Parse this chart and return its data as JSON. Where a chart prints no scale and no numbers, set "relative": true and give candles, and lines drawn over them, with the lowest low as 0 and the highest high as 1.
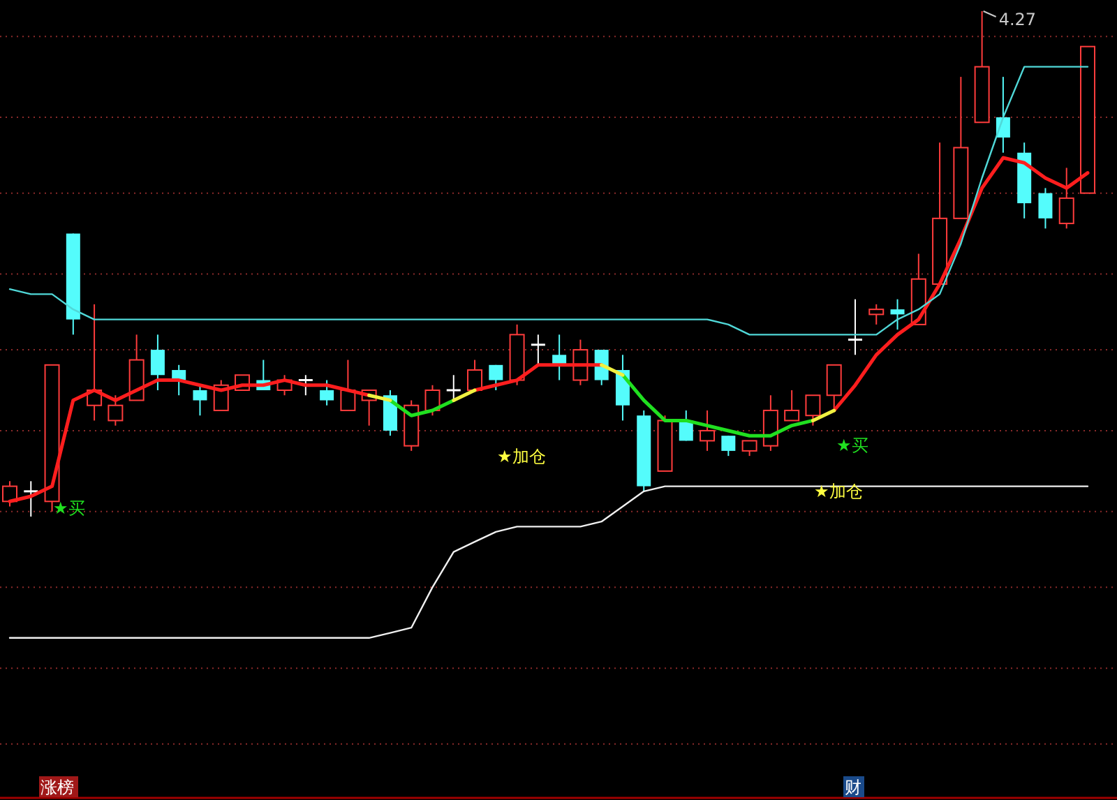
{
  "chart_data": {
    "type": "candlestick",
    "relative": true,
    "ref_lines": [
      {
        "axis": "y",
        "value": 0.95,
        "color": "#8a2a2a",
        "line_style": "dotted"
      },
      {
        "axis": "y",
        "value": 0.79,
        "color": "#8a2a2a",
        "line_style": "dotted"
      },
      {
        "axis": "y",
        "value": 0.64,
        "color": "#8a2a2a",
        "line_style": "dotted"
      },
      {
        "axis": "y",
        "value": 0.48,
        "color": "#8a2a2a",
        "line_style": "dotted"
      },
      {
        "axis": "y",
        "value": 0.33,
        "color": "#8a2a2a",
        "line_style": "dotted"
      },
      {
        "axis": "y",
        "value": 0.17,
        "color": "#8a2a2a",
        "line_style": "dotted"
      },
      {
        "axis": "y",
        "value": 0.01,
        "color": "#8a2a2a",
        "line_style": "dotted"
      },
      {
        "axis": "y",
        "value": -0.14,
        "color": "#8a2a2a",
        "line_style": "dotted"
      },
      {
        "axis": "y",
        "value": -0.3,
        "color": "#8a2a2a",
        "line_style": "dotted"
      },
      {
        "axis": "y",
        "value": -0.45,
        "color": "#8a2a2a",
        "line_style": "dotted"
      }
    ],
    "categories": [
      null,
      null,
      null,
      null,
      null,
      null,
      null,
      null,
      null,
      null,
      null,
      null,
      null,
      null,
      null,
      null,
      null,
      null,
      null,
      null,
      null,
      null,
      null,
      null,
      null,
      null,
      null,
      null,
      null,
      null,
      null,
      null,
      null,
      null,
      null,
      null,
      null,
      null,
      null,
      null,
      null,
      null,
      null,
      null,
      null,
      null,
      null,
      null,
      null,
      null,
      null,
      null
    ],
    "ohlc": [
      [
        0.03,
        0.07,
        0.02,
        0.06
      ],
      [
        0.05,
        0.07,
        0,
        0.05
      ],
      [
        0.03,
        0.3,
        0.01,
        0.3
      ],
      [
        0.56,
        0.56,
        0.36,
        0.39
      ],
      [
        0.22,
        0.42,
        0.19,
        0.25
      ],
      [
        0.19,
        0.24,
        0.18,
        0.22
      ],
      [
        0.23,
        0.36,
        0.23,
        0.31
      ],
      [
        0.33,
        0.36,
        0.25,
        0.28
      ],
      [
        0.29,
        0.3,
        0.24,
        0.27
      ],
      [
        0.25,
        0.26,
        0.2,
        0.23
      ],
      [
        0.21,
        0.27,
        0.21,
        0.26
      ],
      [
        0.25,
        0.28,
        0.25,
        0.28
      ],
      [
        0.27,
        0.31,
        0.25,
        0.25
      ],
      [
        0.25,
        0.28,
        0.24,
        0.27
      ],
      [
        0.27,
        0.28,
        0.24,
        0.27
      ],
      [
        0.25,
        0.27,
        0.22,
        0.23
      ],
      [
        0.21,
        0.31,
        0.21,
        0.25
      ],
      [
        0.23,
        0.25,
        0.18,
        0.25
      ],
      [
        0.24,
        0.25,
        0.16,
        0.17
      ],
      [
        0.14,
        0.23,
        0.13,
        0.22
      ],
      [
        0.21,
        0.26,
        0.2,
        0.25
      ],
      [
        0.25,
        0.28,
        0.23,
        0.25
      ],
      [
        0.25,
        0.31,
        0.25,
        0.29
      ],
      [
        0.3,
        0.3,
        0.25,
        0.27
      ],
      [
        0.27,
        0.38,
        0.26,
        0.36
      ],
      [
        0.34,
        0.36,
        0.3,
        0.34
      ],
      [
        0.32,
        0.36,
        0.27,
        0.3
      ],
      [
        0.27,
        0.35,
        0.26,
        0.33
      ],
      [
        0.33,
        0.33,
        0.26,
        0.27
      ],
      [
        0.29,
        0.32,
        0.19,
        0.22
      ],
      [
        0.2,
        0.21,
        0.05,
        0.06
      ],
      [
        0.09,
        0.2,
        0.09,
        0.19
      ],
      [
        0.19,
        0.21,
        0.15,
        0.15
      ],
      [
        0.15,
        0.21,
        0.13,
        0.17
      ],
      [
        0.16,
        0.16,
        0.12,
        0.13
      ],
      [
        0.13,
        0.15,
        0.12,
        0.15
      ],
      [
        0.14,
        0.24,
        0.13,
        0.21
      ],
      [
        0.19,
        0.25,
        0.19,
        0.21
      ],
      [
        0.2,
        0.24,
        0.18,
        0.24
      ],
      [
        0.24,
        0.3,
        0.21,
        0.3
      ],
      [
        0.35,
        0.43,
        0.32,
        0.35
      ],
      [
        0.4,
        0.42,
        0.38,
        0.41
      ],
      [
        0.41,
        0.43,
        0.37,
        0.4
      ],
      [
        0.38,
        0.52,
        0.38,
        0.47
      ],
      [
        0.46,
        0.74,
        0.46,
        0.59
      ],
      [
        0.59,
        0.87,
        0.59,
        0.73
      ],
      [
        0.78,
        1.0,
        0.78,
        0.89
      ],
      [
        0.79,
        0.87,
        0.72,
        0.75
      ],
      [
        0.72,
        0.74,
        0.59,
        0.62
      ],
      [
        0.64,
        0.65,
        0.57,
        0.59
      ],
      [
        0.58,
        0.69,
        0.57,
        0.63
      ],
      [
        0.64,
        0.93,
        0.64,
        0.93
      ]
    ],
    "series": [
      {
        "type": "line",
        "color": "#ff1e1e",
        "values": [
          0.03,
          0.04,
          0.06,
          0.23,
          0.25,
          0.23,
          0.25,
          0.27,
          0.27,
          0.26,
          0.25,
          0.26,
          0.26,
          0.27,
          0.26,
          0.26,
          0.25,
          0.24,
          null,
          null,
          null,
          null,
          0.25,
          0.26,
          0.27,
          0.3,
          0.3,
          0.3,
          0.3,
          null,
          null,
          null,
          null,
          null,
          null,
          null,
          null,
          null,
          null,
          0.21,
          0.26,
          0.32,
          0.36,
          0.39,
          0.46,
          0.55,
          0.65,
          0.71,
          0.7,
          0.67,
          0.65,
          0.68
        ]
      },
      {
        "type": "line",
        "color": "#20e020",
        "values": [
          null,
          null,
          null,
          null,
          null,
          null,
          null,
          null,
          null,
          null,
          null,
          null,
          null,
          null,
          null,
          null,
          null,
          null,
          0.23,
          0.2,
          0.21,
          0.23,
          null,
          null,
          null,
          null,
          null,
          null,
          null,
          0.28,
          0.23,
          0.19,
          0.19,
          0.18,
          0.17,
          0.16,
          0.16,
          0.18,
          0.19,
          null,
          null,
          null,
          null,
          null,
          null,
          null,
          null,
          null,
          null,
          null,
          null,
          null
        ]
      },
      {
        "type": "line",
        "color": "#f0f040",
        "values": [
          null,
          null,
          null,
          null,
          null,
          null,
          null,
          null,
          null,
          null,
          null,
          null,
          null,
          null,
          null,
          null,
          null,
          0.24,
          0.23,
          null,
          null,
          0.23,
          0.25,
          null,
          null,
          null,
          null,
          null,
          0.3,
          0.28,
          null,
          null,
          null,
          null,
          null,
          null,
          null,
          null,
          0.19,
          0.21,
          null,
          null,
          null,
          null,
          null,
          null,
          null,
          null,
          null,
          null,
          null,
          null
        ]
      },
      {
        "type": "line",
        "color": "#50d8d8",
        "values": [
          0.45,
          0.44,
          0.44,
          0.41,
          0.39,
          0.39,
          0.39,
          0.39,
          0.39,
          0.39,
          0.39,
          0.39,
          0.39,
          0.39,
          0.39,
          0.39,
          0.39,
          0.39,
          0.39,
          0.39,
          0.39,
          0.39,
          0.39,
          0.39,
          0.39,
          0.39,
          0.39,
          0.39,
          0.39,
          0.39,
          0.39,
          0.39,
          0.39,
          0.39,
          0.38,
          0.36,
          0.36,
          0.36,
          0.36,
          0.36,
          0.36,
          0.36,
          0.39,
          0.41,
          0.44,
          0.54,
          0.67,
          0.79,
          0.89,
          0.89,
          0.89,
          0.89
        ]
      },
      {
        "type": "line",
        "color": "#f0f0f0",
        "values": [
          -0.24,
          -0.24,
          -0.24,
          -0.24,
          -0.24,
          -0.24,
          -0.24,
          -0.24,
          -0.24,
          -0.24,
          -0.24,
          -0.24,
          -0.24,
          -0.24,
          -0.24,
          -0.24,
          -0.24,
          -0.24,
          -0.23,
          -0.22,
          -0.14,
          -0.07,
          -0.05,
          -0.03,
          -0.02,
          -0.02,
          -0.02,
          -0.02,
          -0.01,
          0.02,
          0.05,
          0.06,
          0.06,
          0.06,
          0.06,
          0.06,
          0.06,
          0.06,
          0.06,
          0.06,
          0.06,
          0.06,
          0.06,
          0.06,
          0.06,
          0.06,
          0.06,
          0.06,
          0.06,
          0.06,
          0.06,
          0.06
        ]
      }
    ],
    "annotations": [
      "4.27",
      "★买",
      "★加仓",
      "★买",
      "★加仓",
      "涨榜",
      "财"
    ]
  }
}
